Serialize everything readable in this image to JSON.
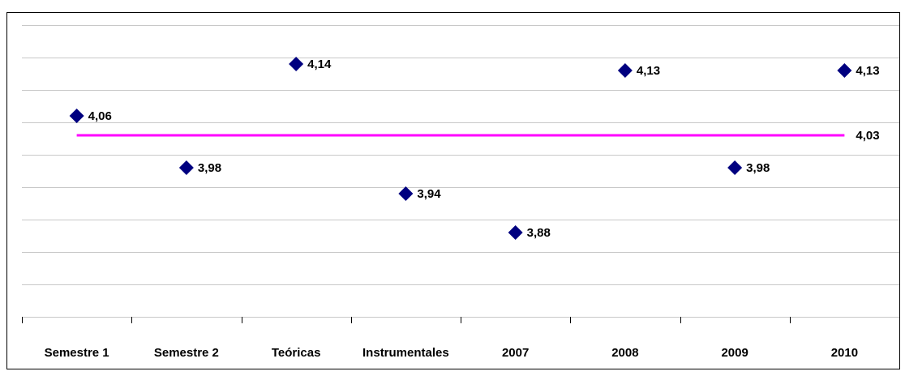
{
  "chart_data": {
    "type": "dot",
    "categories": [
      "Semestre 1",
      "Semestre 2",
      "Teóricas",
      "Instrumentales",
      "2007",
      "2008",
      "2009",
      "2010"
    ],
    "values": [
      4.06,
      3.98,
      4.14,
      3.94,
      3.88,
      4.13,
      3.98,
      4.13
    ],
    "value_labels": [
      "4,06",
      "3,98",
      "4,14",
      "3,94",
      "3,88",
      "4,13",
      "3,98",
      "4,13"
    ],
    "color": "#000080",
    "marker": "diamond",
    "reference_line": {
      "value": 4.03,
      "label": "4,03",
      "color": "#ff00ff"
    },
    "ylim": [
      3.75,
      4.2
    ],
    "yticks": [
      3.75,
      3.8,
      3.85,
      3.9,
      3.95,
      4.0,
      4.05,
      4.1,
      4.15,
      4.2
    ],
    "grid": true
  }
}
